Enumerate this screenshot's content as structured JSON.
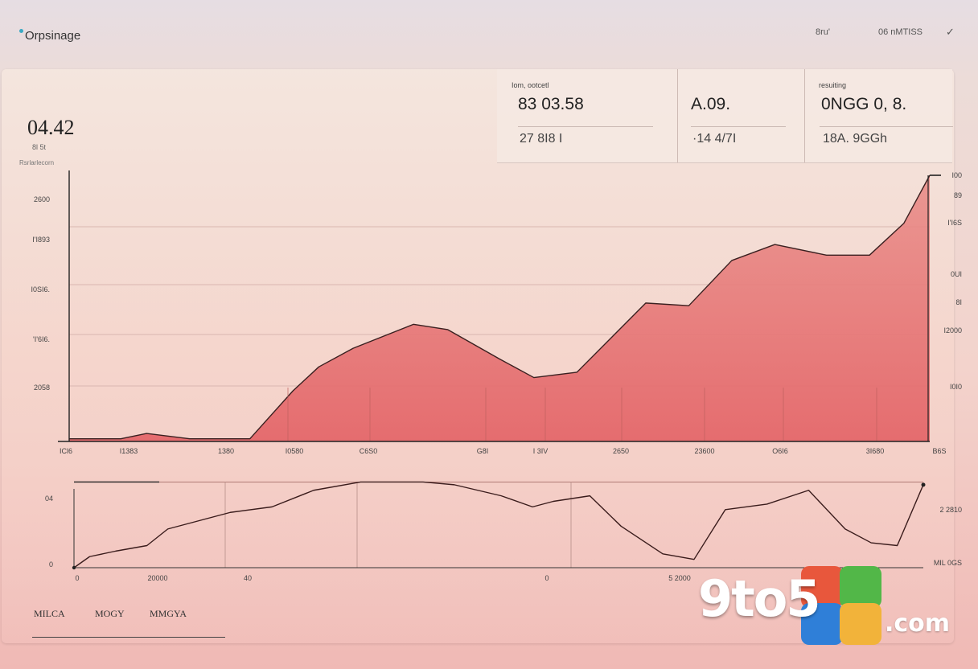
{
  "header": {
    "app_title": "Orpsinage",
    "links": [
      "8ru'",
      "06 nMTISS"
    ],
    "dropdown_glyph": "✓"
  },
  "summary": {
    "value": "04.42",
    "sub": "8l 5t",
    "chart_label": "Rsrlarlecorn"
  },
  "stats": [
    {
      "head": "Iom, ootcetl",
      "main": "83 03.58",
      "sub": "27 8I8 I"
    },
    {
      "head": "",
      "main": "A.09.",
      "sub": "·14 4/7I"
    },
    {
      "head": "resuiting",
      "main": "0NGG 0, 8.",
      "sub": "18A. 9GGh"
    }
  ],
  "tabs": [
    "MILCA",
    "MOGY",
    "MMGYA"
  ],
  "watermark": {
    "text": "9to5",
    "suffix": ".com"
  },
  "colors": {
    "area_fill": "#e77b78",
    "line": "#3a2020",
    "accent": "#3aa9c4"
  },
  "chart_data": [
    {
      "type": "area",
      "title": "",
      "xlabel": "",
      "ylabel": "",
      "x_tick_labels": [
        "ICl6",
        "I1383",
        "1380",
        "I0580",
        "C6S0",
        "G8I",
        "I 3IV",
        "2650",
        "23600",
        "O6I6",
        "3I680",
        "B6S"
      ],
      "y_tick_labels_left": [
        "2600",
        "I'I893",
        "I0SI6.",
        "'I'6I6.",
        "2058"
      ],
      "y_tick_labels_right": [
        "I00",
        "89",
        "I'I6S",
        "0UI",
        "8I",
        "I2000",
        "I0I0"
      ],
      "grid": true,
      "x": [
        0,
        6,
        9,
        14,
        17,
        21,
        26,
        29,
        33,
        40,
        44,
        50,
        54,
        59,
        67,
        72,
        77,
        82,
        88,
        93,
        97,
        100
      ],
      "y": [
        1,
        1,
        3,
        1,
        1,
        1,
        19,
        28,
        35,
        44,
        42,
        31,
        24,
        26,
        52,
        51,
        68,
        74,
        70,
        70,
        82,
        100
      ],
      "ylim": [
        0,
        100
      ]
    },
    {
      "type": "line",
      "title": "",
      "x_tick_labels": [
        "0",
        "20000",
        "40",
        "0",
        "5 2000"
      ],
      "y_tick_labels_left": [
        "04",
        "0"
      ],
      "y_tick_labels_right": [
        "2 2810",
        "MIL 0GS"
      ],
      "grid": true,
      "x": [
        0,
        3,
        8,
        14,
        18,
        22,
        30,
        38,
        46,
        55,
        60,
        67,
        73,
        82,
        88,
        92,
        99,
        105,
        113,
        119,
        125,
        133,
        141,
        148,
        153,
        158,
        163
      ],
      "y": [
        0,
        4,
        6,
        8,
        14,
        16,
        20,
        22,
        28,
        31,
        31,
        31,
        30,
        26,
        22,
        24,
        26,
        15,
        5,
        3,
        21,
        23,
        28,
        14,
        9,
        8,
        30
      ],
      "y_reference": 31,
      "ylim": [
        0,
        32
      ]
    }
  ]
}
